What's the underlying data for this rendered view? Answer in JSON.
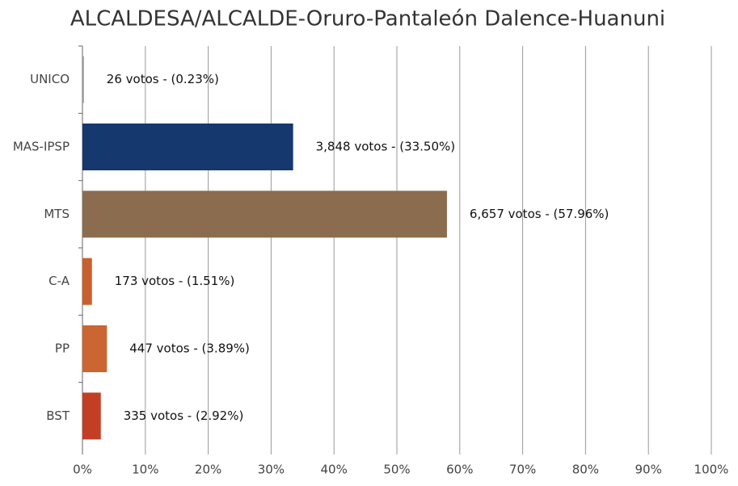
{
  "chart_data": {
    "type": "hbar",
    "title": "ALCALDESA/ALCALDE-Oruro-Pantaleón Dalence-Huanuni",
    "categories": [
      "UNICO",
      "MAS-IPSP",
      "MTS",
      "C-A",
      "PP",
      "BST"
    ],
    "values": [
      0.23,
      33.5,
      57.96,
      1.51,
      3.89,
      2.92
    ],
    "value_labels": [
      "26 votos - (0.23%)",
      "3,848 votos - (33.50%)",
      "6,657 votos - (57.96%)",
      "173 votos - (1.51%)",
      "447 votos - (3.89%)",
      "335 votos - (2.92%)"
    ],
    "colors": [
      "#9a9a9a",
      "#15386e",
      "#8c6c4e",
      "#c8602e",
      "#cb6532",
      "#c23f25"
    ],
    "xlim": [
      0,
      100
    ],
    "xticks": [
      {
        "value": 0,
        "label": "0%"
      },
      {
        "value": 10,
        "label": "10%"
      },
      {
        "value": 20,
        "label": "20%"
      },
      {
        "value": 30,
        "label": "30%"
      },
      {
        "value": 40,
        "label": "40%"
      },
      {
        "value": 50,
        "label": "50%"
      },
      {
        "value": 60,
        "label": "60%"
      },
      {
        "value": 70,
        "label": "70%"
      },
      {
        "value": 80,
        "label": "80%"
      },
      {
        "value": 90,
        "label": "90%"
      },
      {
        "value": 100,
        "label": "100%"
      }
    ],
    "grid": true
  }
}
